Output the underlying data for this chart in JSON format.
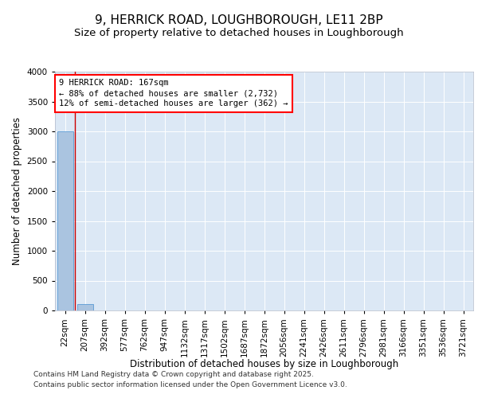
{
  "title1": "9, HERRICK ROAD, LOUGHBOROUGH, LE11 2BP",
  "title2": "Size of property relative to detached houses in Loughborough",
  "xlabel": "Distribution of detached houses by size in Loughborough",
  "ylabel": "Number of detached properties",
  "categories": [
    "22sqm",
    "207sqm",
    "392sqm",
    "577sqm",
    "762sqm",
    "947sqm",
    "1132sqm",
    "1317sqm",
    "1502sqm",
    "1687sqm",
    "1872sqm",
    "2056sqm",
    "2241sqm",
    "2426sqm",
    "2611sqm",
    "2796sqm",
    "2981sqm",
    "3166sqm",
    "3351sqm",
    "3536sqm",
    "3721sqm"
  ],
  "values": [
    3003,
    110,
    3,
    1,
    1,
    0,
    0,
    0,
    0,
    0,
    0,
    0,
    0,
    0,
    0,
    0,
    0,
    0,
    0,
    0,
    0
  ],
  "ylim": [
    0,
    4000
  ],
  "bar_color": "#aac4e0",
  "bar_edge_color": "#5b9bd5",
  "bg_color": "#dce8f5",
  "fig_bg_color": "#ffffff",
  "annotation_line1": "9 HERRICK ROAD: 167sqm",
  "annotation_line2": "← 88% of detached houses are smaller (2,732)",
  "annotation_line3": "12% of semi-detached houses are larger (362) →",
  "vline_color": "#cc0000",
  "footer1": "Contains HM Land Registry data © Crown copyright and database right 2025.",
  "footer2": "Contains public sector information licensed under the Open Government Licence v3.0.",
  "title1_fontsize": 11,
  "title2_fontsize": 9.5,
  "tick_fontsize": 7.5,
  "ylabel_fontsize": 8.5,
  "xlabel_fontsize": 8.5,
  "footer_fontsize": 6.5,
  "annotation_fontsize": 7.5
}
